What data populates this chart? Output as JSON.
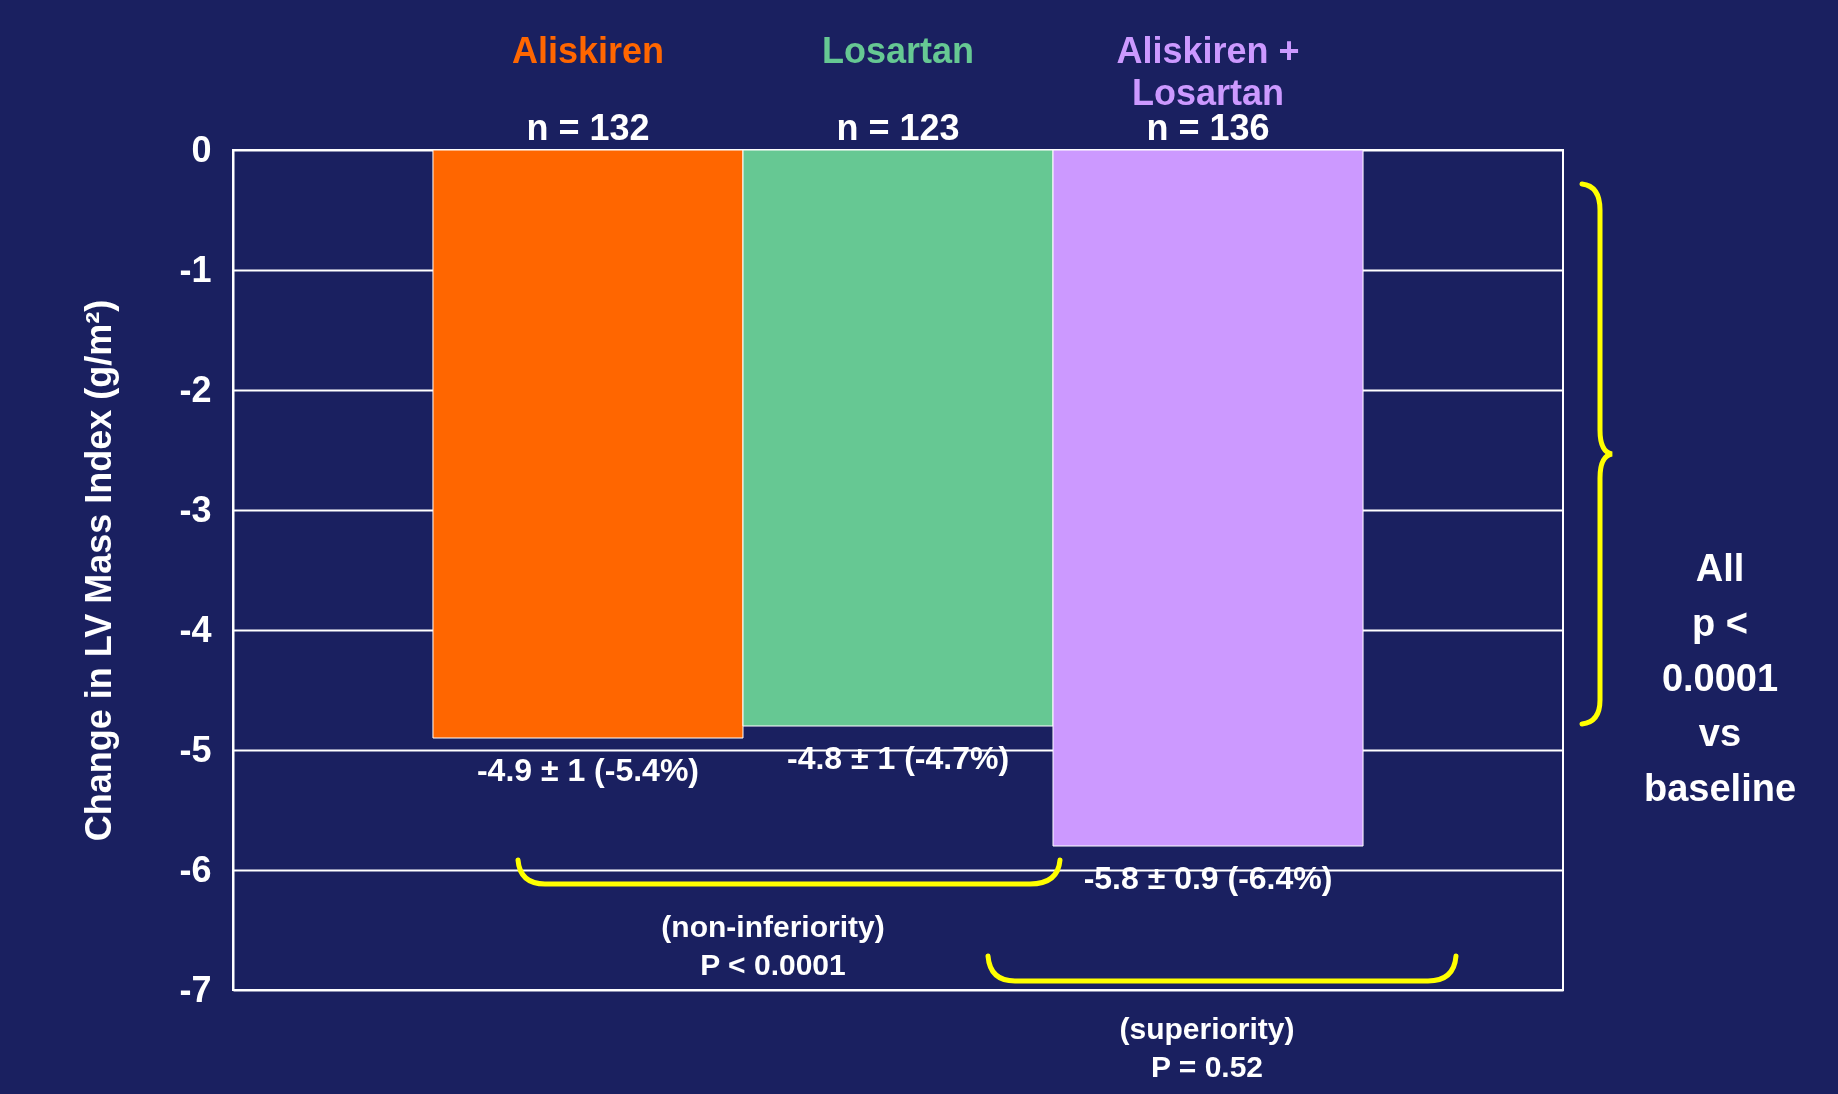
{
  "chart_data": {
    "type": "bar",
    "ylabel": "Change in LV Mass Index (g/m²)",
    "categories": [
      "Aliskiren",
      "Losartan",
      "Aliskiren +\nLosartan"
    ],
    "values": [
      -4.9,
      -4.8,
      -5.8
    ],
    "colors": [
      "#ff6600",
      "#66c893",
      "#cc99ff"
    ],
    "value_labels": [
      "-4.9 ± 1 (-5.4%)",
      "-4.8 ± 1 (-4.7%)",
      "-5.8 ±  0.9 (-6.4%)"
    ],
    "ylim": [
      -7,
      0
    ],
    "yticks": [
      0,
      -1,
      -2,
      -3,
      -4,
      -5,
      -6,
      -7
    ],
    "grid": "y",
    "annotations": [
      {
        "text": "n = 132",
        "x": "Aliskiren",
        "y": 0
      },
      {
        "text": "n = 123",
        "x": "Losartan",
        "y": 0
      },
      {
        "text": "n = 136",
        "x": "Aliskiren +\nLosartan",
        "y": 0
      },
      "(non-inferiority)\nP < 0.0001",
      "(superiority)\nP = 0.52",
      "All\np <\n0.0001\nvs\nbaseline"
    ]
  }
}
